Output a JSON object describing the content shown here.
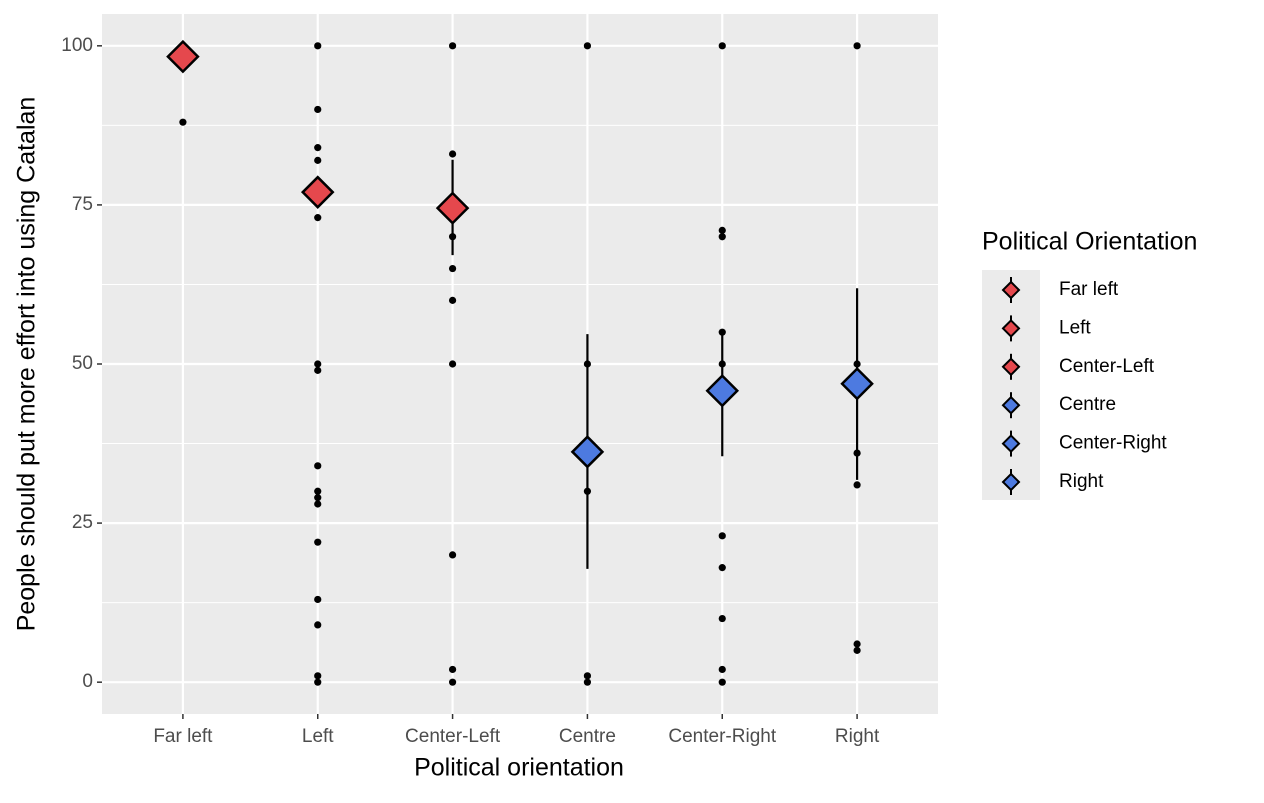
{
  "chart_data": {
    "type": "pointrange",
    "x_label": "Political orientation",
    "y_label": "People should put more effort into using Catalan",
    "legend_title": "Political Orientation",
    "categories": [
      "Far left",
      "Left",
      "Center-Left",
      "Centre",
      "Center-Right",
      "Right"
    ],
    "ylim": [
      -5,
      105
    ],
    "yticks": [
      0,
      25,
      50,
      75,
      100
    ],
    "minor_yticks": [
      12.5,
      37.5,
      62.5,
      87.5
    ],
    "grid": true,
    "groups": [
      {
        "name": "Far left",
        "color": "#e5484d",
        "mean": 98.3,
        "lower": null,
        "upper": null,
        "points": [
          88
        ]
      },
      {
        "name": "Left",
        "color": "#e5484d",
        "mean": 77,
        "lower": null,
        "upper": null,
        "points": [
          100,
          90,
          84,
          82,
          73,
          50,
          49,
          34,
          30,
          29,
          28,
          22,
          13,
          9,
          1,
          0
        ]
      },
      {
        "name": "Center-Left",
        "color": "#e5484d",
        "mean": 74.5,
        "lower": 67.1,
        "upper": 82.1,
        "points": [
          100,
          83,
          70,
          65,
          60,
          50,
          20,
          2,
          0
        ]
      },
      {
        "name": "Centre",
        "color": "#4d7ae0",
        "mean": 36.2,
        "lower": 17.8,
        "upper": 54.7,
        "points": [
          100,
          50,
          30,
          1,
          0
        ]
      },
      {
        "name": "Center-Right",
        "color": "#4d7ae0",
        "mean": 45.8,
        "lower": 35.5,
        "upper": 55.3,
        "points": [
          100,
          71,
          70,
          55,
          50,
          23,
          18,
          10,
          2,
          0
        ]
      },
      {
        "name": "Right",
        "color": "#4d7ae0",
        "mean": 46.9,
        "lower": 31.8,
        "upper": 61.9,
        "points": [
          100,
          50,
          36,
          31,
          6,
          5
        ]
      }
    ]
  }
}
